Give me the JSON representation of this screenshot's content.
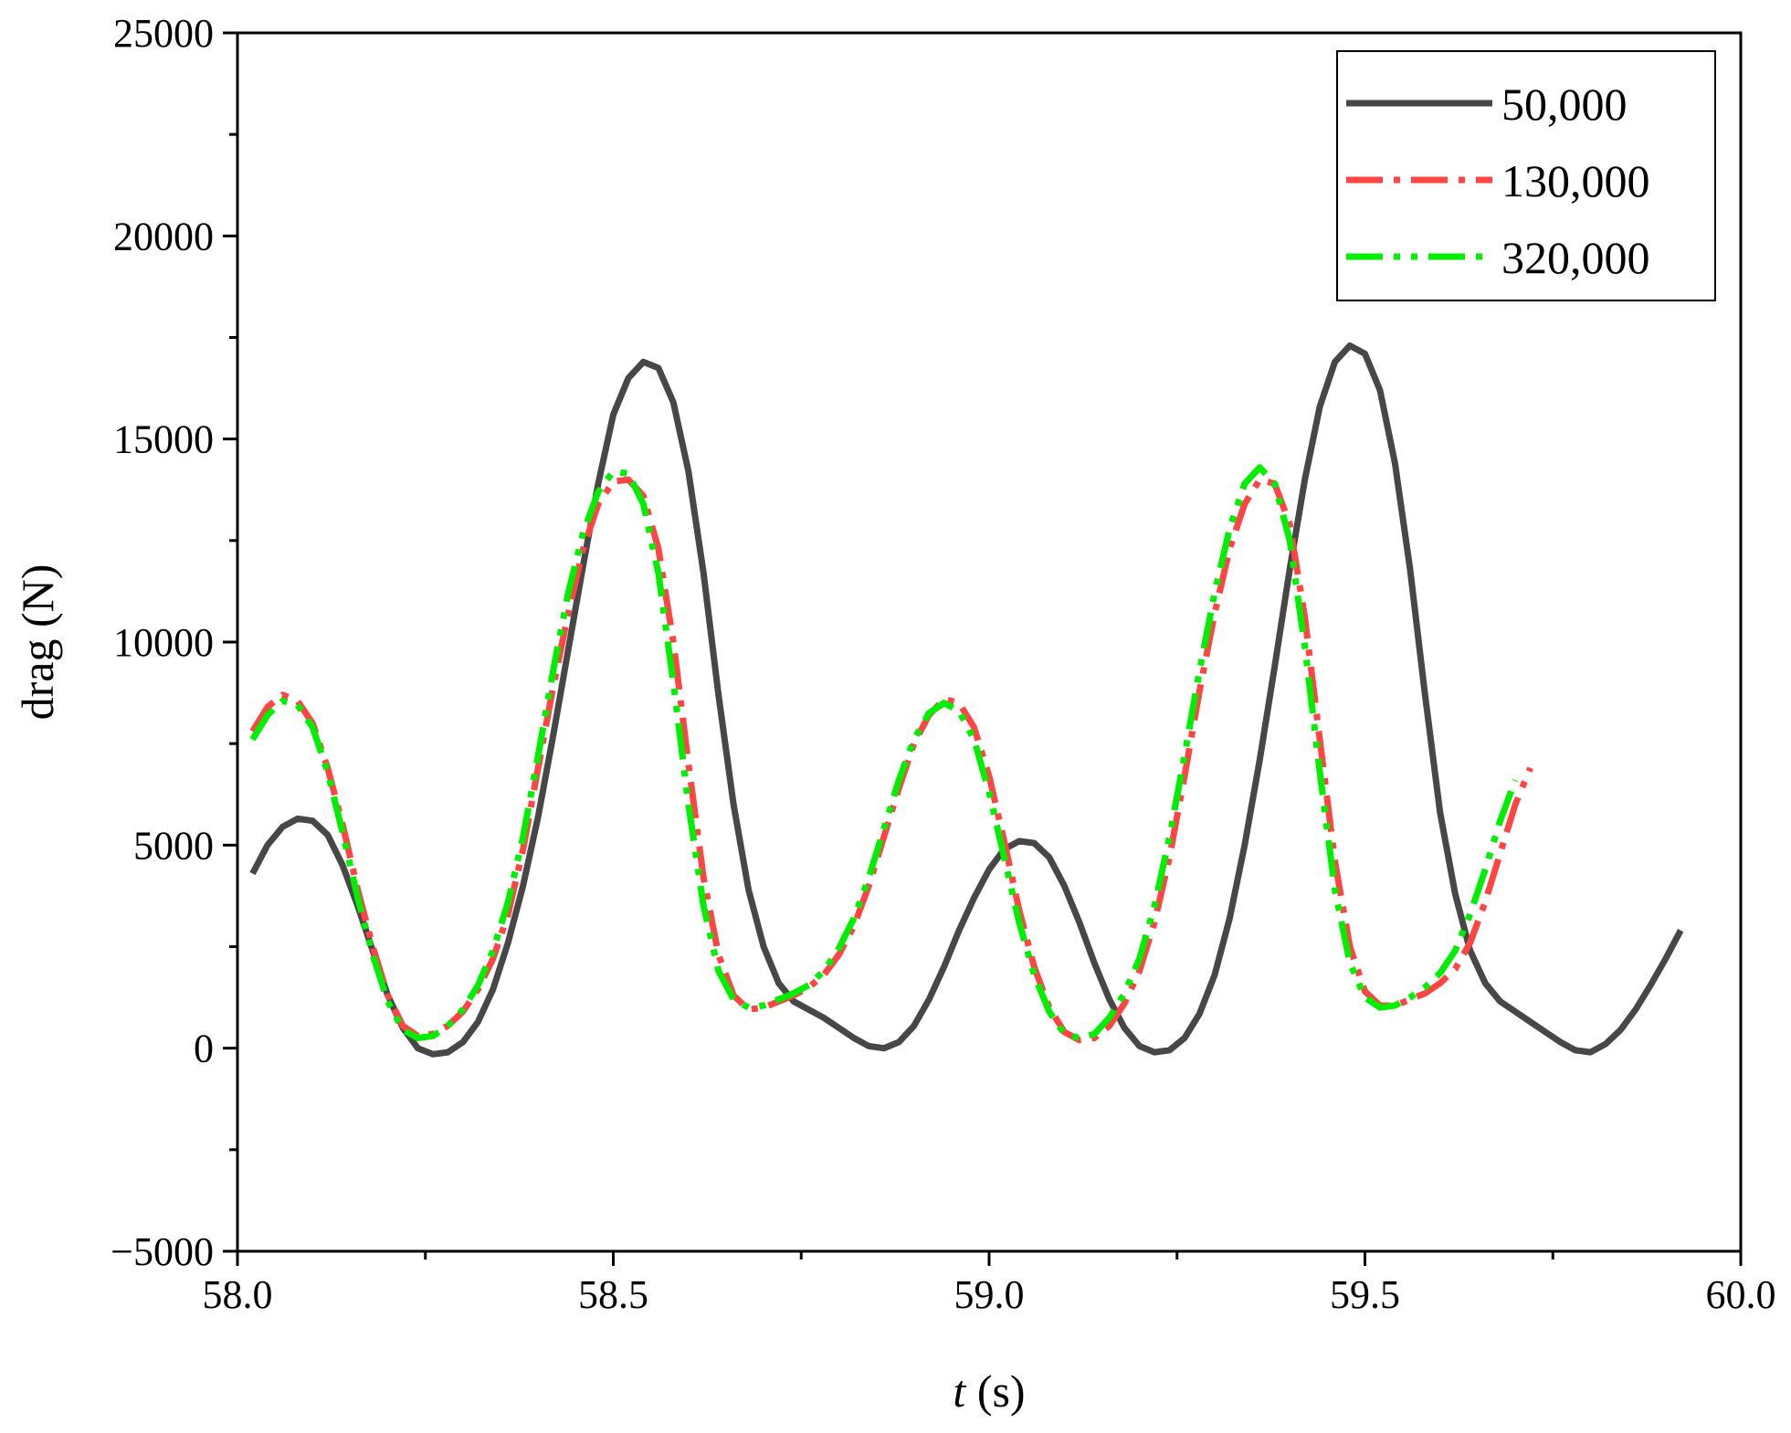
{
  "chart_data": {
    "type": "line",
    "title": "",
    "xlabel_var": "t",
    "xlabel_unit": " (s)",
    "ylabel": "drag (N)",
    "xlim": [
      58.0,
      60.0
    ],
    "ylim": [
      -5000,
      25000
    ],
    "x_ticks": [
      58.0,
      58.5,
      59.0,
      59.5,
      60.0
    ],
    "x_tick_labels": [
      "58.0",
      "58.5",
      "59.0",
      "59.5",
      "60.0"
    ],
    "x_minor_ticks": [
      58.25,
      58.75,
      59.25,
      59.75
    ],
    "y_ticks": [
      -5000,
      0,
      5000,
      10000,
      15000,
      20000,
      25000
    ],
    "y_tick_labels": [
      "−5000",
      "0",
      "5000",
      "10000",
      "15000",
      "20000",
      "25000"
    ],
    "y_minor_ticks": [
      -2500,
      2500,
      7500,
      12500,
      17500,
      22500
    ],
    "grid": false,
    "legend_position": "top-right",
    "series": [
      {
        "name": "50,000",
        "color": "#474747",
        "style": "solid",
        "points": [
          [
            58.02,
            4300
          ],
          [
            58.04,
            5000
          ],
          [
            58.06,
            5450
          ],
          [
            58.08,
            5650
          ],
          [
            58.1,
            5600
          ],
          [
            58.12,
            5250
          ],
          [
            58.14,
            4500
          ],
          [
            58.16,
            3500
          ],
          [
            58.18,
            2400
          ],
          [
            58.2,
            1300
          ],
          [
            58.22,
            500
          ],
          [
            58.24,
            0
          ],
          [
            58.26,
            -150
          ],
          [
            58.28,
            -100
          ],
          [
            58.3,
            150
          ],
          [
            58.32,
            650
          ],
          [
            58.34,
            1450
          ],
          [
            58.36,
            2600
          ],
          [
            58.38,
            4000
          ],
          [
            58.4,
            5700
          ],
          [
            58.42,
            7700
          ],
          [
            58.44,
            9800
          ],
          [
            58.46,
            11900
          ],
          [
            58.48,
            13900
          ],
          [
            58.5,
            15600
          ],
          [
            58.52,
            16500
          ],
          [
            58.54,
            16900
          ],
          [
            58.56,
            16750
          ],
          [
            58.58,
            15900
          ],
          [
            58.6,
            14200
          ],
          [
            58.62,
            11700
          ],
          [
            58.64,
            8700
          ],
          [
            58.66,
            6000
          ],
          [
            58.68,
            3900
          ],
          [
            58.7,
            2500
          ],
          [
            58.72,
            1600
          ],
          [
            58.74,
            1150
          ],
          [
            58.76,
            950
          ],
          [
            58.78,
            750
          ],
          [
            58.8,
            500
          ],
          [
            58.82,
            250
          ],
          [
            58.84,
            50
          ],
          [
            58.86,
            0
          ],
          [
            58.88,
            150
          ],
          [
            58.9,
            550
          ],
          [
            58.92,
            1200
          ],
          [
            58.94,
            2000
          ],
          [
            58.96,
            2900
          ],
          [
            58.98,
            3700
          ],
          [
            59.0,
            4400
          ],
          [
            59.02,
            4900
          ],
          [
            59.04,
            5100
          ],
          [
            59.06,
            5050
          ],
          [
            59.08,
            4700
          ],
          [
            59.1,
            4000
          ],
          [
            59.12,
            3100
          ],
          [
            59.14,
            2100
          ],
          [
            59.16,
            1200
          ],
          [
            59.18,
            500
          ],
          [
            59.2,
            50
          ],
          [
            59.22,
            -100
          ],
          [
            59.24,
            -50
          ],
          [
            59.26,
            250
          ],
          [
            59.28,
            850
          ],
          [
            59.3,
            1800
          ],
          [
            59.32,
            3200
          ],
          [
            59.34,
            5000
          ],
          [
            59.36,
            7100
          ],
          [
            59.38,
            9400
          ],
          [
            59.4,
            11800
          ],
          [
            59.42,
            14000
          ],
          [
            59.44,
            15800
          ],
          [
            59.46,
            16900
          ],
          [
            59.48,
            17300
          ],
          [
            59.5,
            17100
          ],
          [
            59.52,
            16200
          ],
          [
            59.54,
            14400
          ],
          [
            59.56,
            11800
          ],
          [
            59.58,
            8700
          ],
          [
            59.6,
            5800
          ],
          [
            59.62,
            3800
          ],
          [
            59.64,
            2400
          ],
          [
            59.66,
            1600
          ],
          [
            59.68,
            1150
          ],
          [
            59.7,
            900
          ],
          [
            59.72,
            650
          ],
          [
            59.74,
            400
          ],
          [
            59.76,
            150
          ],
          [
            59.78,
            -50
          ],
          [
            59.8,
            -100
          ],
          [
            59.82,
            100
          ],
          [
            59.84,
            450
          ],
          [
            59.86,
            950
          ],
          [
            59.88,
            1550
          ],
          [
            59.9,
            2200
          ],
          [
            59.92,
            2900
          ]
        ]
      },
      {
        "name": "130,000",
        "color": "#ff4444",
        "style": "dashdot",
        "points": [
          [
            58.02,
            7800
          ],
          [
            58.04,
            8400
          ],
          [
            58.06,
            8700
          ],
          [
            58.08,
            8550
          ],
          [
            58.1,
            8000
          ],
          [
            58.12,
            6900
          ],
          [
            58.14,
            5500
          ],
          [
            58.16,
            3900
          ],
          [
            58.18,
            2500
          ],
          [
            58.2,
            1300
          ],
          [
            58.22,
            550
          ],
          [
            58.24,
            300
          ],
          [
            58.26,
            350
          ],
          [
            58.28,
            550
          ],
          [
            58.3,
            900
          ],
          [
            58.32,
            1450
          ],
          [
            58.34,
            2200
          ],
          [
            58.36,
            3300
          ],
          [
            58.38,
            4900
          ],
          [
            58.4,
            6900
          ],
          [
            58.42,
            8900
          ],
          [
            58.44,
            10700
          ],
          [
            58.46,
            12300
          ],
          [
            58.48,
            13400
          ],
          [
            58.5,
            13950
          ],
          [
            58.52,
            14000
          ],
          [
            58.54,
            13600
          ],
          [
            58.56,
            12300
          ],
          [
            58.58,
            10000
          ],
          [
            58.6,
            7000
          ],
          [
            58.62,
            4200
          ],
          [
            58.64,
            2300
          ],
          [
            58.66,
            1300
          ],
          [
            58.68,
            950
          ],
          [
            58.7,
            1000
          ],
          [
            58.72,
            1150
          ],
          [
            58.74,
            1300
          ],
          [
            58.76,
            1500
          ],
          [
            58.78,
            1800
          ],
          [
            58.8,
            2300
          ],
          [
            58.82,
            3000
          ],
          [
            58.84,
            4000
          ],
          [
            58.86,
            5200
          ],
          [
            58.88,
            6400
          ],
          [
            58.9,
            7500
          ],
          [
            58.92,
            8200
          ],
          [
            58.94,
            8600
          ],
          [
            58.96,
            8500
          ],
          [
            58.98,
            7900
          ],
          [
            59.0,
            6700
          ],
          [
            59.02,
            5100
          ],
          [
            59.04,
            3400
          ],
          [
            59.06,
            2000
          ],
          [
            59.08,
            1000
          ],
          [
            59.1,
            400
          ],
          [
            59.12,
            200
          ],
          [
            59.14,
            250
          ],
          [
            59.16,
            550
          ],
          [
            59.18,
            1100
          ],
          [
            59.2,
            1900
          ],
          [
            59.22,
            3100
          ],
          [
            59.24,
            4700
          ],
          [
            59.26,
            6700
          ],
          [
            59.28,
            8800
          ],
          [
            59.3,
            10700
          ],
          [
            59.32,
            12300
          ],
          [
            59.34,
            13400
          ],
          [
            59.36,
            14000
          ],
          [
            59.38,
            13900
          ],
          [
            59.4,
            12900
          ],
          [
            59.42,
            10600
          ],
          [
            59.44,
            7600
          ],
          [
            59.46,
            4600
          ],
          [
            59.48,
            2500
          ],
          [
            59.5,
            1400
          ],
          [
            59.52,
            1050
          ],
          [
            59.54,
            1050
          ],
          [
            59.56,
            1200
          ],
          [
            59.58,
            1350
          ],
          [
            59.6,
            1600
          ],
          [
            59.62,
            1950
          ],
          [
            59.64,
            2600
          ],
          [
            59.66,
            3600
          ],
          [
            59.68,
            4800
          ],
          [
            59.7,
            6000
          ],
          [
            59.72,
            6900
          ]
        ]
      },
      {
        "name": "320,000",
        "color": "#00ee00",
        "style": "dashdotdot",
        "points": [
          [
            58.02,
            7600
          ],
          [
            58.04,
            8200
          ],
          [
            58.06,
            8550
          ],
          [
            58.08,
            8450
          ],
          [
            58.1,
            7900
          ],
          [
            58.12,
            6800
          ],
          [
            58.14,
            5300
          ],
          [
            58.16,
            3700
          ],
          [
            58.18,
            2300
          ],
          [
            58.2,
            1150
          ],
          [
            58.22,
            450
          ],
          [
            58.24,
            250
          ],
          [
            58.26,
            300
          ],
          [
            58.28,
            550
          ],
          [
            58.3,
            950
          ],
          [
            58.32,
            1550
          ],
          [
            58.34,
            2400
          ],
          [
            58.36,
            3600
          ],
          [
            58.38,
            5200
          ],
          [
            58.4,
            7200
          ],
          [
            58.42,
            9300
          ],
          [
            58.44,
            11200
          ],
          [
            58.46,
            12700
          ],
          [
            58.48,
            13700
          ],
          [
            58.5,
            14200
          ],
          [
            58.52,
            14150
          ],
          [
            58.54,
            13400
          ],
          [
            58.56,
            11700
          ],
          [
            58.58,
            9000
          ],
          [
            58.6,
            6000
          ],
          [
            58.62,
            3500
          ],
          [
            58.64,
            1900
          ],
          [
            58.66,
            1200
          ],
          [
            58.68,
            1000
          ],
          [
            58.7,
            1050
          ],
          [
            58.72,
            1200
          ],
          [
            58.74,
            1350
          ],
          [
            58.76,
            1550
          ],
          [
            58.78,
            1900
          ],
          [
            58.8,
            2450
          ],
          [
            58.82,
            3200
          ],
          [
            58.84,
            4200
          ],
          [
            58.86,
            5400
          ],
          [
            58.88,
            6600
          ],
          [
            58.9,
            7600
          ],
          [
            58.92,
            8250
          ],
          [
            58.94,
            8500
          ],
          [
            58.96,
            8300
          ],
          [
            58.98,
            7600
          ],
          [
            59.0,
            6300
          ],
          [
            59.02,
            4700
          ],
          [
            59.04,
            3100
          ],
          [
            59.06,
            1800
          ],
          [
            59.08,
            900
          ],
          [
            59.1,
            350
          ],
          [
            59.12,
            250
          ],
          [
            59.14,
            350
          ],
          [
            59.16,
            750
          ],
          [
            59.18,
            1350
          ],
          [
            59.2,
            2200
          ],
          [
            59.22,
            3500
          ],
          [
            59.24,
            5200
          ],
          [
            59.26,
            7200
          ],
          [
            59.28,
            9300
          ],
          [
            59.3,
            11200
          ],
          [
            59.32,
            12800
          ],
          [
            59.34,
            13900
          ],
          [
            59.36,
            14300
          ],
          [
            59.38,
            13900
          ],
          [
            59.4,
            12500
          ],
          [
            59.42,
            9900
          ],
          [
            59.44,
            6800
          ],
          [
            59.46,
            3900
          ],
          [
            59.48,
            2100
          ],
          [
            59.5,
            1250
          ],
          [
            59.52,
            1000
          ],
          [
            59.54,
            1050
          ],
          [
            59.56,
            1250
          ],
          [
            59.58,
            1500
          ],
          [
            59.6,
            1850
          ],
          [
            59.62,
            2400
          ],
          [
            59.64,
            3300
          ],
          [
            59.66,
            4400
          ],
          [
            59.68,
            5600
          ],
          [
            59.7,
            6600
          ]
        ]
      }
    ]
  }
}
